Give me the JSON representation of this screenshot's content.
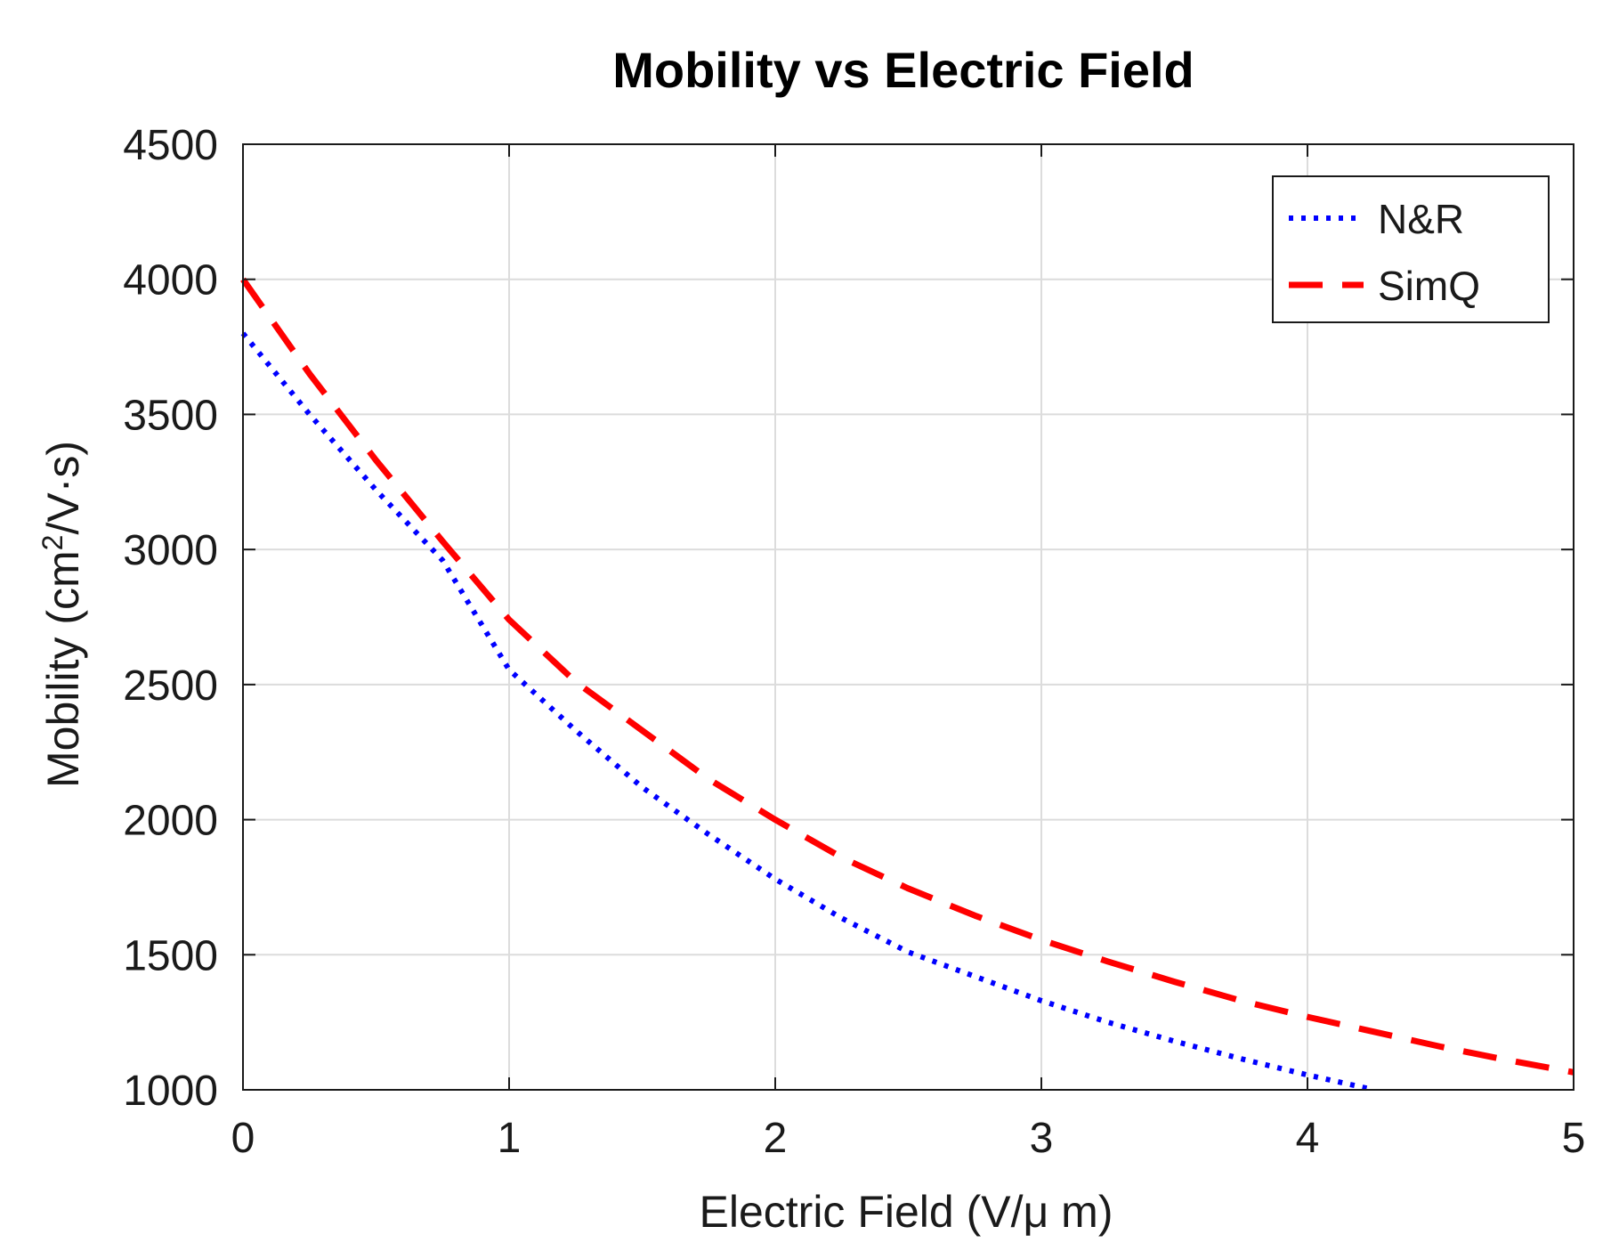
{
  "chart_data": {
    "type": "line",
    "title": "Mobility vs Electric Field",
    "xlabel": "Electric Field (V/μ m)",
    "ylabel": {
      "prefix": "Mobility (cm",
      "superscript": "2",
      "suffix": "/V·s)"
    },
    "xlim": [
      0,
      5
    ],
    "ylim": [
      1000,
      4500
    ],
    "xticks": [
      0,
      1,
      2,
      3,
      4,
      5
    ],
    "yticks": [
      1000,
      1500,
      2000,
      2500,
      3000,
      3500,
      4000,
      4500
    ],
    "grid": true,
    "legend_position": "top-right",
    "series": [
      {
        "name": "N&R",
        "color": "#0000ff",
        "style": "dotted",
        "x": [
          0,
          0.25,
          0.5,
          0.75,
          1.0,
          1.25,
          1.5,
          1.75,
          2.0,
          2.25,
          2.5,
          2.75,
          3.0,
          3.25,
          3.5,
          3.75,
          4.0,
          4.25
        ],
        "y": [
          3800,
          3500,
          3220,
          2960,
          2555,
          2330,
          2120,
          1945,
          1780,
          1635,
          1510,
          1420,
          1330,
          1250,
          1180,
          1115,
          1055,
          1000
        ]
      },
      {
        "name": "SimQ",
        "color": "#ff0000",
        "style": "dashed",
        "x": [
          0,
          0.25,
          0.5,
          0.75,
          1.0,
          1.25,
          1.5,
          1.75,
          2.0,
          2.25,
          2.5,
          2.75,
          3.0,
          3.25,
          3.5,
          3.75,
          4.0,
          4.25,
          4.5,
          4.75,
          5.0
        ],
        "y": [
          4000,
          3650,
          3330,
          3030,
          2740,
          2510,
          2330,
          2150,
          2000,
          1860,
          1745,
          1645,
          1555,
          1475,
          1400,
          1330,
          1270,
          1215,
          1160,
          1110,
          1065
        ]
      }
    ]
  }
}
